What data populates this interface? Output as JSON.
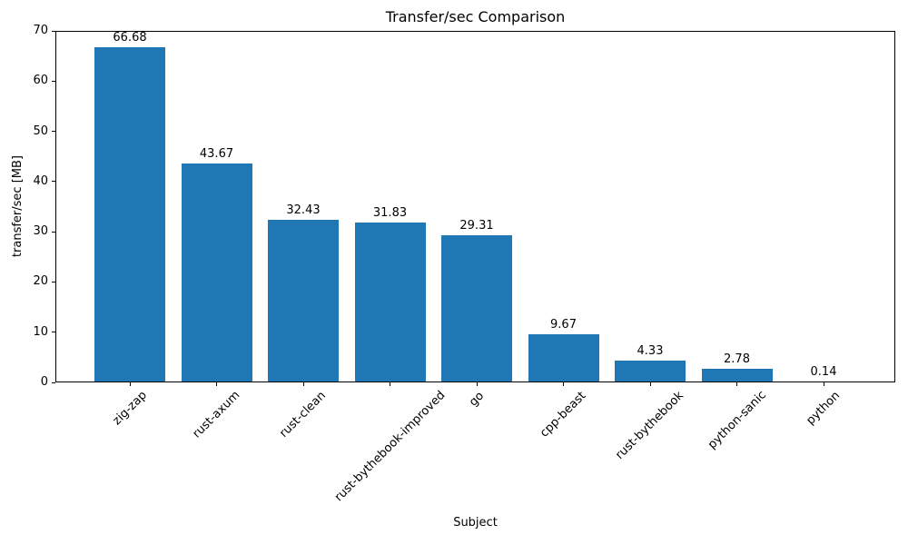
{
  "chart_data": {
    "type": "bar",
    "title": "Transfer/sec Comparison",
    "xlabel": "Subject",
    "ylabel": "transfer/sec [MB]",
    "categories": [
      "zig-zap",
      "rust-axum",
      "rust-clean",
      "rust-bythebook-improved",
      "go",
      "cpp-beast",
      "rust-bythebook",
      "python-sanic",
      "python"
    ],
    "values": [
      66.68,
      43.67,
      32.43,
      31.83,
      29.31,
      9.67,
      4.33,
      2.78,
      0.14
    ],
    "value_labels": [
      "66.68",
      "43.67",
      "32.43",
      "31.83",
      "29.31",
      "9.67",
      "4.33",
      "2.78",
      "0.14"
    ],
    "ylim": [
      0,
      70
    ],
    "yticks": [
      0,
      10,
      20,
      30,
      40,
      50,
      60,
      70
    ],
    "bar_color": "#1f77b4",
    "axis_color": "#000000",
    "grid": false,
    "legend": null
  }
}
